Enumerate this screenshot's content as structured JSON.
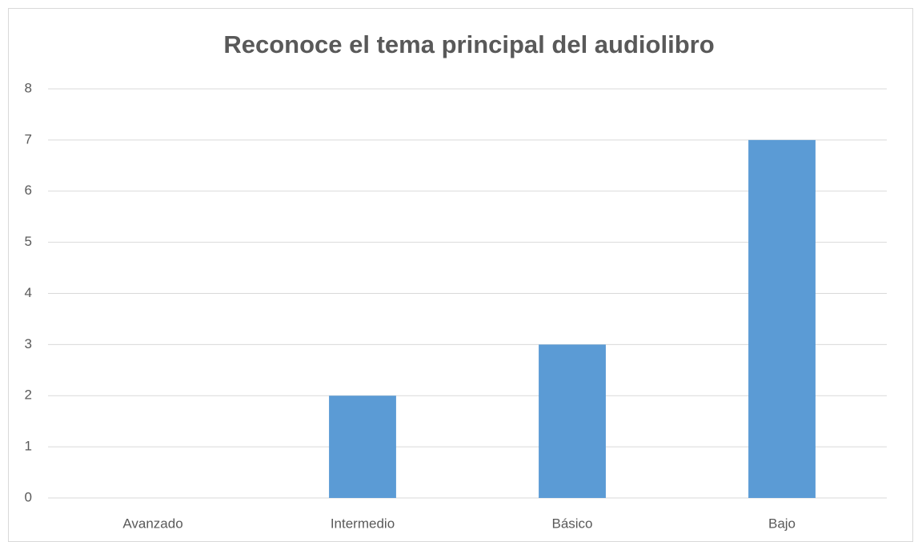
{
  "chart_data": {
    "type": "bar",
    "title": "Reconoce el tema principal del audiolibro",
    "categories": [
      "Avanzado",
      "Intermedio",
      "Básico",
      "Bajo"
    ],
    "values": [
      0,
      2,
      3,
      7
    ],
    "color": "#5b9bd5",
    "ylim": [
      0,
      8
    ],
    "yticks": [
      0,
      1,
      2,
      3,
      4,
      5,
      6,
      7,
      8
    ],
    "grid": true
  }
}
